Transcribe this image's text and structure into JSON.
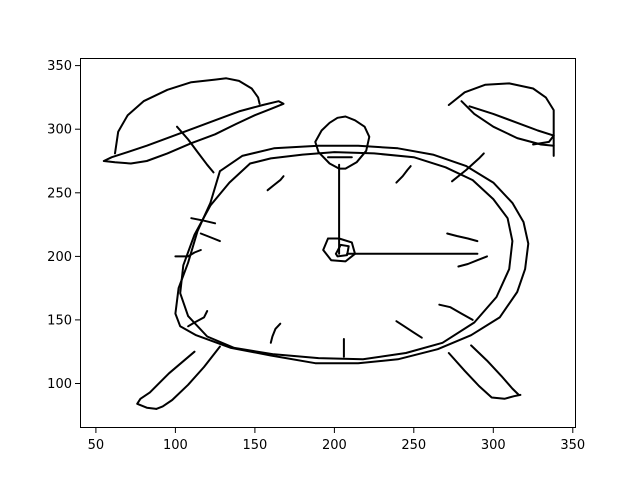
{
  "chart_data": {
    "type": "line",
    "title": "",
    "xlabel": "",
    "ylabel": "",
    "xlim": [
      40,
      352
    ],
    "ylim": [
      65,
      356
    ],
    "grid": false,
    "legend": "none",
    "x_ticks": [
      50,
      100,
      150,
      200,
      250,
      300,
      350
    ],
    "y_ticks": [
      100,
      150,
      200,
      250,
      300,
      350
    ],
    "x_tick_labels": [
      "50",
      "100",
      "150",
      "200",
      "250",
      "300",
      "350"
    ],
    "y_tick_labels": [
      "100",
      "150",
      "200",
      "250",
      "300",
      "350"
    ],
    "line_color": "#000000",
    "series": [
      {
        "points": [
          [
            55,
            275
          ],
          [
            62,
            274
          ],
          [
            72,
            273
          ],
          [
            82,
            275
          ],
          [
            95,
            281
          ],
          [
            110,
            289
          ],
          [
            125,
            296
          ],
          [
            138,
            304
          ],
          [
            150,
            311
          ],
          [
            160,
            316
          ],
          [
            168,
            320
          ],
          [
            165,
            322
          ],
          [
            155,
            319
          ],
          [
            140,
            314
          ],
          [
            125,
            307
          ],
          [
            110,
            300
          ],
          [
            95,
            293
          ],
          [
            82,
            287
          ],
          [
            70,
            282
          ],
          [
            60,
            278
          ],
          [
            55,
            275
          ]
        ]
      },
      {
        "points": [
          [
            62,
            281
          ],
          [
            64,
            298
          ],
          [
            70,
            311
          ],
          [
            80,
            322
          ],
          [
            95,
            331
          ],
          [
            110,
            337
          ],
          [
            125,
            339
          ],
          [
            132,
            340
          ],
          [
            140,
            338
          ],
          [
            148,
            332
          ],
          [
            152,
            325
          ],
          [
            153,
            320
          ]
        ]
      },
      {
        "points": [
          [
            101,
            302
          ],
          [
            108,
            292
          ],
          [
            114,
            282
          ],
          [
            120,
            272
          ],
          [
            124,
            266
          ]
        ]
      },
      {
        "points": [
          [
            280,
            322
          ],
          [
            288,
            312
          ],
          [
            300,
            302
          ],
          [
            315,
            293
          ],
          [
            330,
            288
          ],
          [
            338,
            287
          ]
        ]
      },
      {
        "points": [
          [
            272,
            319
          ],
          [
            282,
            329
          ],
          [
            295,
            335
          ],
          [
            310,
            336
          ],
          [
            325,
            332
          ],
          [
            333,
            325
          ],
          [
            338,
            315
          ],
          [
            338,
            295
          ],
          [
            338,
            279
          ]
        ]
      },
      {
        "points": [
          [
            285,
            318
          ],
          [
            300,
            312
          ],
          [
            315,
            305
          ],
          [
            328,
            299
          ],
          [
            338,
            295
          ],
          [
            335,
            290
          ],
          [
            325,
            288
          ]
        ]
      },
      {
        "points": [
          [
            274,
            259
          ],
          [
            283,
            268
          ],
          [
            291,
            277
          ],
          [
            294,
            281
          ]
        ]
      },
      {
        "points": [
          [
            147,
            273
          ],
          [
            160,
            277
          ],
          [
            180,
            280
          ],
          [
            200,
            282
          ],
          [
            225,
            281
          ],
          [
            250,
            278
          ],
          [
            270,
            270
          ],
          [
            287,
            260
          ],
          [
            300,
            245
          ],
          [
            309,
            230
          ],
          [
            312,
            212
          ],
          [
            310,
            190
          ],
          [
            302,
            168
          ],
          [
            288,
            148
          ],
          [
            268,
            132
          ],
          [
            245,
            124
          ],
          [
            218,
            119
          ],
          [
            190,
            120
          ],
          [
            162,
            123
          ],
          [
            137,
            128
          ],
          [
            120,
            137
          ],
          [
            108,
            153
          ],
          [
            103,
            171
          ],
          [
            105,
            193
          ],
          [
            112,
            217
          ],
          [
            122,
            240
          ],
          [
            134,
            258
          ],
          [
            147,
            273
          ]
        ]
      },
      {
        "points": [
          [
            128,
            267
          ],
          [
            142,
            279
          ],
          [
            162,
            285
          ],
          [
            190,
            287
          ],
          [
            215,
            287
          ],
          [
            240,
            285
          ],
          [
            262,
            280
          ],
          [
            283,
            271
          ],
          [
            300,
            258
          ],
          [
            312,
            242
          ],
          [
            319,
            227
          ],
          [
            322,
            210
          ],
          [
            320,
            190
          ],
          [
            315,
            172
          ],
          [
            304,
            152
          ],
          [
            286,
            138
          ],
          [
            265,
            127
          ],
          [
            240,
            119
          ],
          [
            215,
            116
          ],
          [
            188,
            116
          ],
          [
            160,
            122
          ],
          [
            135,
            128
          ],
          [
            113,
            138
          ],
          [
            103,
            145
          ],
          [
            100,
            155
          ],
          [
            102,
            175
          ],
          [
            108,
            195
          ],
          [
            114,
            220
          ],
          [
            122,
            242
          ],
          [
            128,
            267
          ]
        ]
      },
      {
        "points": [
          [
            203,
            269
          ],
          [
            197,
            273
          ],
          [
            190,
            282
          ],
          [
            188,
            290
          ],
          [
            192,
            299
          ],
          [
            197,
            305
          ],
          [
            202,
            309
          ],
          [
            207,
            310
          ],
          [
            213,
            307
          ],
          [
            219,
            302
          ],
          [
            222,
            294
          ],
          [
            220,
            283
          ],
          [
            214,
            274
          ],
          [
            207,
            269
          ],
          [
            203,
            269
          ]
        ]
      },
      {
        "points": [
          [
            203,
            272
          ],
          [
            203,
            202
          ]
        ]
      },
      {
        "points": [
          [
            208,
            202
          ],
          [
            290,
            202
          ]
        ]
      },
      {
        "points": [
          [
            196,
            278
          ],
          [
            211,
            278
          ]
        ]
      },
      {
        "points": [
          [
            100,
            200
          ],
          [
            108,
            200
          ],
          [
            112,
            203
          ],
          [
            116,
            205
          ]
        ]
      },
      {
        "points": [
          [
            110,
            230
          ],
          [
            118,
            228
          ],
          [
            125,
            226
          ]
        ]
      },
      {
        "points": [
          [
            108,
            145
          ],
          [
            112,
            148
          ],
          [
            118,
            152
          ],
          [
            120,
            157
          ]
        ]
      },
      {
        "points": [
          [
            160,
            132
          ],
          [
            161,
            137
          ],
          [
            163,
            143
          ],
          [
            166,
            147
          ]
        ]
      },
      {
        "points": [
          [
            206,
            121
          ],
          [
            206,
            126
          ],
          [
            206,
            131
          ],
          [
            206,
            135
          ]
        ]
      },
      {
        "points": [
          [
            239,
            149
          ],
          [
            244,
            145
          ],
          [
            250,
            140
          ],
          [
            255,
            136
          ]
        ]
      },
      {
        "points": [
          [
            266,
            162
          ],
          [
            273,
            160
          ],
          [
            280,
            155
          ],
          [
            287,
            150
          ]
        ]
      },
      {
        "points": [
          [
            278,
            192
          ],
          [
            284,
            194
          ],
          [
            290,
            197
          ],
          [
            296,
            200
          ]
        ]
      },
      {
        "points": [
          [
            271,
            218
          ],
          [
            277,
            216
          ],
          [
            284,
            214
          ],
          [
            290,
            212
          ]
        ]
      },
      {
        "points": [
          [
            239,
            258
          ],
          [
            243,
            263
          ],
          [
            246,
            268
          ],
          [
            248,
            271
          ]
        ]
      },
      {
        "points": [
          [
            158,
            252
          ],
          [
            162,
            256
          ],
          [
            166,
            260
          ],
          [
            168,
            263
          ]
        ]
      },
      {
        "points": [
          [
            116,
            218
          ],
          [
            120,
            216
          ],
          [
            124,
            214
          ],
          [
            128,
            212
          ]
        ]
      },
      {
        "points": [
          [
            196,
            214
          ],
          [
            193,
            205
          ],
          [
            198,
            197
          ],
          [
            207,
            196
          ],
          [
            213,
            202
          ],
          [
            211,
            211
          ],
          [
            203,
            214
          ],
          [
            196,
            214
          ]
        ]
      },
      {
        "points": [
          [
            201,
            202
          ],
          [
            204,
            209
          ],
          [
            209,
            208
          ],
          [
            208,
            201
          ],
          [
            202,
            200
          ],
          [
            201,
            202
          ]
        ]
      },
      {
        "points": [
          [
            112,
            125
          ],
          [
            96,
            108
          ],
          [
            84,
            93
          ],
          [
            78,
            88
          ],
          [
            76,
            84
          ],
          [
            82,
            81
          ],
          [
            88,
            80
          ]
        ]
      },
      {
        "points": [
          [
            128,
            129
          ],
          [
            118,
            113
          ],
          [
            108,
            99
          ],
          [
            98,
            87
          ],
          [
            92,
            82
          ],
          [
            88,
            80
          ]
        ]
      },
      {
        "points": [
          [
            272,
            124
          ],
          [
            282,
            110
          ],
          [
            291,
            98
          ],
          [
            299,
            89
          ],
          [
            307,
            88
          ],
          [
            313,
            90
          ],
          [
            317,
            91
          ]
        ]
      },
      {
        "points": [
          [
            286,
            130
          ],
          [
            296,
            118
          ],
          [
            305,
            106
          ],
          [
            312,
            96
          ],
          [
            316,
            91
          ]
        ]
      }
    ]
  }
}
